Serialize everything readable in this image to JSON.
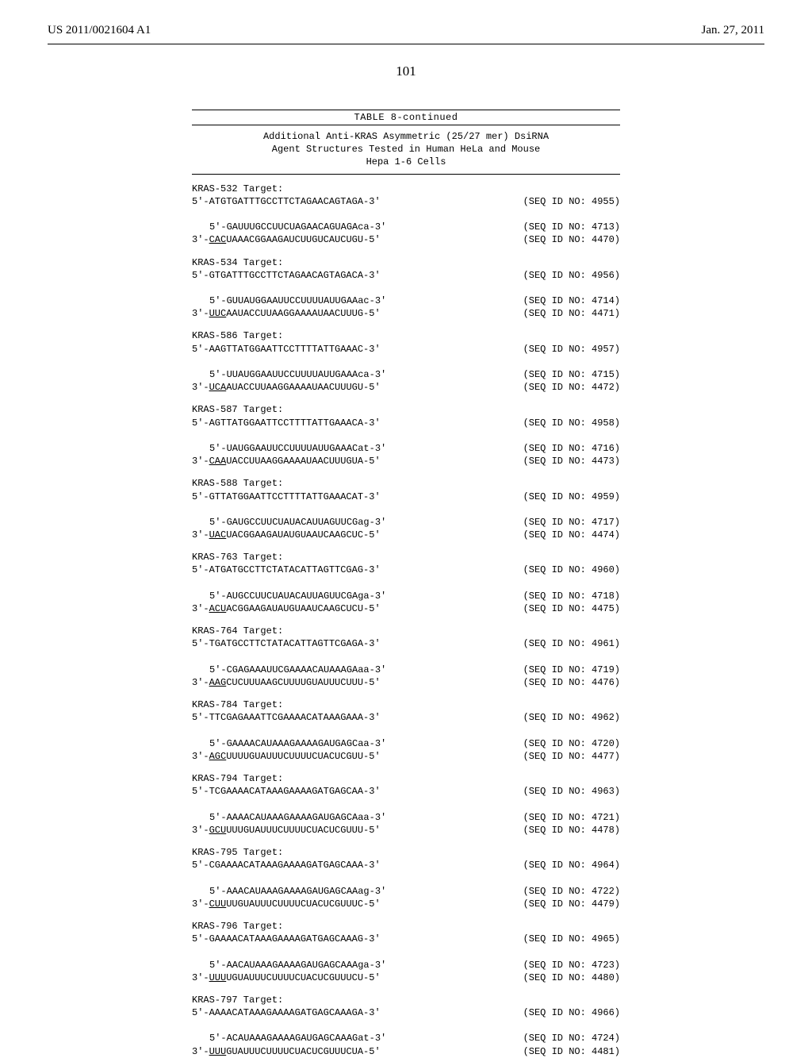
{
  "header": {
    "pub_number": "US 2011/0021604 A1",
    "pub_date": "Jan. 27, 2011"
  },
  "page_number": "101",
  "table": {
    "label": "TABLE 8-continued",
    "subtitle_lines": [
      "Additional Anti-KRAS Asymmetric (25/27 mer) DsiRNA",
      "Agent Structures Tested in Human HeLa and Mouse",
      "Hepa 1-6 Cells"
    ]
  },
  "entries": [
    {
      "target_label": "KRAS-532 Target:",
      "target_seq": "5'-ATGTGATTTGCCTTCTAGAACAGTAGA-3'",
      "target_seqid": "(SEQ ID NO: 4955)",
      "sense_seq": "5'-GAUUUGCCUUCUAGAACAGUAGAca-3'",
      "sense_seqid": "(SEQ ID NO: 4713)",
      "anti_pre": "3'-",
      "anti_ul": "CAC",
      "anti_rest": "UAAACGGAAGAUCUUGUCAUCUGU-5'",
      "anti_seqid": "(SEQ ID NO: 4470)"
    },
    {
      "target_label": "KRAS-534 Target:",
      "target_seq": "5'-GTGATTTGCCTTCTAGAACAGTAGACA-3'",
      "target_seqid": "(SEQ ID NO: 4956)",
      "sense_seq": "5'-GUUAUGGAAUUCCUUUUAUUGAAac-3'",
      "sense_seqid": "(SEQ ID NO: 4714)",
      "anti_pre": "3'-",
      "anti_ul": "UUC",
      "anti_rest": "AAUACCUUAAGGAAAAUAACUUUG-5'",
      "anti_seqid": "(SEQ ID NO: 4471)"
    },
    {
      "target_label": "KRAS-586 Target:",
      "target_seq": "5'-AAGTTATGGAATTCCTTTTATTGAAAC-3'",
      "target_seqid": "(SEQ ID NO: 4957)",
      "sense_seq": "5'-UUAUGGAAUUCCUUUUAUUGAAAca-3'",
      "sense_seqid": "(SEQ ID NO: 4715)",
      "anti_pre": "3'-",
      "anti_ul": "UCA",
      "anti_rest": "AUACCUUAAGGAAAAUAACUUUGU-5'",
      "anti_seqid": "(SEQ ID NO: 4472)"
    },
    {
      "target_label": "KRAS-587 Target:",
      "target_seq": "5'-AGTTATGGAATTCCTTTTATTGAAACA-3'",
      "target_seqid": "(SEQ ID NO: 4958)",
      "sense_seq": "5'-UAUGGAAUUCCUUUUAUUGAAACat-3'",
      "sense_seqid": "(SEQ ID NO: 4716)",
      "anti_pre": "3'-",
      "anti_ul": "CAA",
      "anti_rest": "UACCUUAAGGAAAAUAACUUUGUA-5'",
      "anti_seqid": "(SEQ ID NO: 4473)"
    },
    {
      "target_label": "KRAS-588 Target:",
      "target_seq": "5'-GTTATGGAATTCCTTTTATTGAAACAT-3'",
      "target_seqid": "(SEQ ID NO: 4959)",
      "sense_seq": "5'-GAUGCCUUCUAUACAUUAGUUCGag-3'",
      "sense_seqid": "(SEQ ID NO: 4717)",
      "anti_pre": "3'-",
      "anti_ul": "UAC",
      "anti_rest": "UACGGAAGAUAUGUAAUCAAGCUC-5'",
      "anti_seqid": "(SEQ ID NO: 4474)"
    },
    {
      "target_label": "KRAS-763 Target:",
      "target_seq": "5'-ATGATGCCTTCTATACATTAGTTCGAG-3'",
      "target_seqid": "(SEQ ID NO: 4960)",
      "sense_seq": "5'-AUGCCUUCUAUACAUUAGUUCGAga-3'",
      "sense_seqid": "(SEQ ID NO: 4718)",
      "anti_pre": "3'-",
      "anti_ul": "ACU",
      "anti_rest": "ACGGAAGAUAUGUAAUCAAGCUCU-5'",
      "anti_seqid": "(SEQ ID NO: 4475)"
    },
    {
      "target_label": "KRAS-764 Target:",
      "target_seq": "5'-TGATGCCTTCTATACATTAGTTCGAGA-3'",
      "target_seqid": "(SEQ ID NO: 4961)",
      "sense_seq": "5'-CGAGAAAUUCGAAAACAUAAAGAaa-3'",
      "sense_seqid": "(SEQ ID NO: 4719)",
      "anti_pre": "3'-",
      "anti_ul": "AAG",
      "anti_rest": "CUCUUUAAGCUUUUGUAUUUCUUU-5'",
      "anti_seqid": "(SEQ ID NO: 4476)"
    },
    {
      "target_label": "KRAS-784 Target:",
      "target_seq": "5'-TTCGAGAAATTCGAAAACATAAAGAAA-3'",
      "target_seqid": "(SEQ ID NO: 4962)",
      "sense_seq": "5'-GAAAACAUAAAGAAAAGAUGAGCaa-3'",
      "sense_seqid": "(SEQ ID NO: 4720)",
      "anti_pre": "3'-",
      "anti_ul": "AGC",
      "anti_rest": "UUUUGUAUUUCUUUUCUACUCGUU-5'",
      "anti_seqid": "(SEQ ID NO: 4477)"
    },
    {
      "target_label": "KRAS-794 Target:",
      "target_seq": "5'-TCGAAAACATAAAGAAAAGATGAGCAA-3'",
      "target_seqid": "(SEQ ID NO: 4963)",
      "sense_seq": "5'-AAAACAUAAAGAAAAGAUGAGCAaa-3'",
      "sense_seqid": "(SEQ ID NO: 4721)",
      "anti_pre": "3'-",
      "anti_ul": "GCU",
      "anti_rest": "UUUGUAUUUCUUUUCUACUCGUUU-5'",
      "anti_seqid": "(SEQ ID NO: 4478)"
    },
    {
      "target_label": "KRAS-795 Target:",
      "target_seq": "5'-CGAAAACATAAAGAAAAGATGAGCAAA-3'",
      "target_seqid": "(SEQ ID NO: 4964)",
      "sense_seq": "5'-AAACAUAAAGAAAAGAUGAGCAAag-3'",
      "sense_seqid": "(SEQ ID NO: 4722)",
      "anti_pre": "3'-",
      "anti_ul": "CUU",
      "anti_rest": "UUGUAUUUCUUUUCUACUCGUUUC-5'",
      "anti_seqid": "(SEQ ID NO: 4479)"
    },
    {
      "target_label": "KRAS-796 Target:",
      "target_seq": "5'-GAAAACATAAAGAAAAGATGAGCAAAG-3'",
      "target_seqid": "(SEQ ID NO: 4965)",
      "sense_seq": "5'-AACAUAAAGAAAAGAUGAGCAAAga-3'",
      "sense_seqid": "(SEQ ID NO: 4723)",
      "anti_pre": "3'-",
      "anti_ul": "UUU",
      "anti_rest": "UGUAUUUCUUUUCUACUCGUUUCU-5'",
      "anti_seqid": "(SEQ ID NO: 4480)"
    },
    {
      "target_label": "KRAS-797 Target:",
      "target_seq": "5'-AAAACATAAAGAAAAGATGAGCAAAGA-3'",
      "target_seqid": "(SEQ ID NO: 4966)",
      "sense_seq": "5'-ACAUAAAGAAAAGAUGAGCAAAGat-3'",
      "sense_seqid": "(SEQ ID NO: 4724)",
      "anti_pre": "3'-",
      "anti_ul": "UUU",
      "anti_rest": "GUAUUUCUUUUCUACUCGUUUCUA-5'",
      "anti_seqid": "(SEQ ID NO: 4481)"
    }
  ]
}
